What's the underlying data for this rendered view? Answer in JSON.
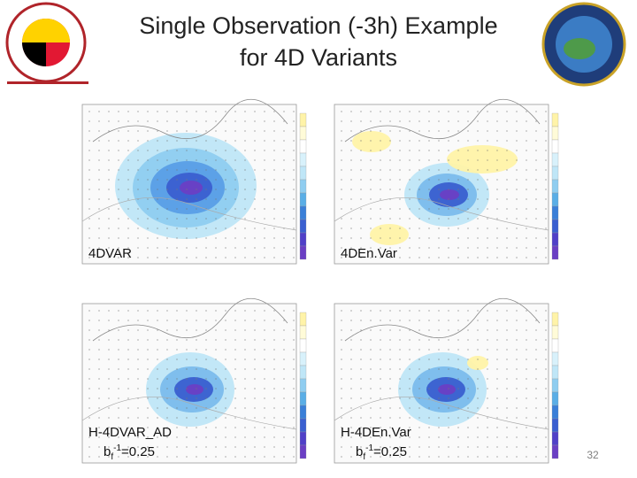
{
  "header": {
    "title_lines": [
      "Single Observation (-3h) Example",
      "for 4D Variants"
    ]
  },
  "panels": [
    {
      "label": "4DVAR"
    },
    {
      "label": "4DEn.Var"
    },
    {
      "label": "H-4DVAR_AD",
      "note": [
        "b",
        "f",
        "-1",
        "=0.25"
      ]
    },
    {
      "label": "H-4DEn.Var",
      "note": [
        "b",
        "f",
        "-1",
        "=0.25"
      ]
    }
  ],
  "footer": {
    "page_number": "32"
  }
}
